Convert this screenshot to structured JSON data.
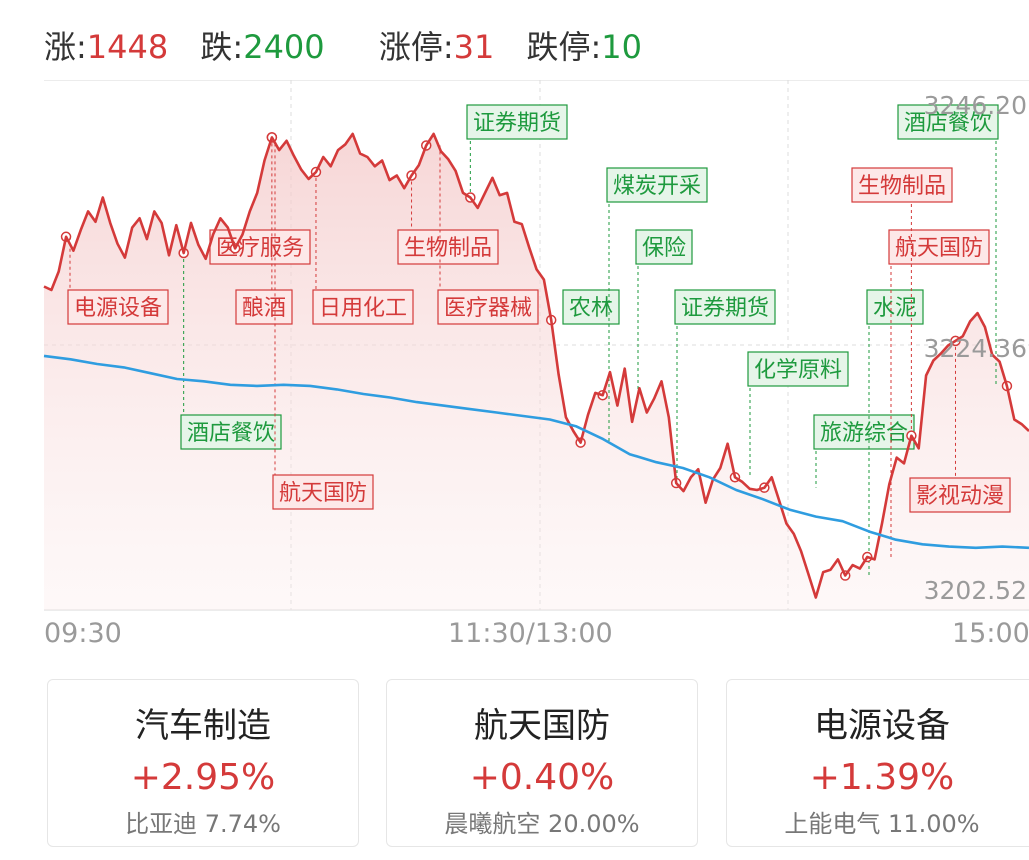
{
  "stats": {
    "up_label": "涨:",
    "up_value": "1448",
    "down_label": "跌:",
    "down_value": "2400",
    "limit_up_label": "涨停:",
    "limit_up_value": "31",
    "limit_down_label": "跌停:",
    "limit_down_value": "10"
  },
  "chart_data": {
    "type": "line",
    "y_axis_labels": [
      "3246.20",
      "3224.36",
      "3202.52"
    ],
    "ylim": [
      3202.52,
      3246.2
    ],
    "x_axis_labels": [
      "09:30",
      "11:30/13:00",
      "15:00"
    ],
    "series": [
      {
        "color": "#d43a3a",
        "values": [
          3230.5,
          3230.2,
          3231.8,
          3234.8,
          3233.6,
          3235.4,
          3237.0,
          3236.1,
          3238.2,
          3236.0,
          3234.2,
          3233.0,
          3235.6,
          3236.4,
          3234.6,
          3237.0,
          3236.0,
          3233.2,
          3235.8,
          3233.4,
          3236.0,
          3234.1,
          3232.9,
          3235.0,
          3236.4,
          3235.6,
          3233.8,
          3235.0,
          3237.0,
          3238.6,
          3241.4,
          3243.4,
          3242.3,
          3243.1,
          3241.8,
          3240.6,
          3239.8,
          3240.4,
          3241.7,
          3240.9,
          3242.3,
          3242.8,
          3243.7,
          3242.0,
          3241.7,
          3240.9,
          3241.4,
          3239.7,
          3240.1,
          3239.0,
          3240.1,
          3241.0,
          3242.7,
          3243.7,
          3242.2,
          3241.5,
          3240.5,
          3238.6,
          3238.2,
          3237.3,
          3238.6,
          3239.9,
          3238.4,
          3238.6,
          3236.1,
          3235.9,
          3233.9,
          3232.0,
          3231.1,
          3227.6,
          3222.9,
          3219.2,
          3218.0,
          3217.0,
          3219.4,
          3221.3,
          3221.1,
          3223.1,
          3220.2,
          3223.4,
          3218.8,
          3221.7,
          3219.6,
          3220.8,
          3222.3,
          3219.2,
          3213.5,
          3212.8,
          3214.0,
          3214.7,
          3211.8,
          3213.8,
          3214.8,
          3216.9,
          3214.0,
          3213.6,
          3213.0,
          3212.9,
          3213.1,
          3214.0,
          3212.0,
          3210.0,
          3209.1,
          3207.6,
          3205.6,
          3203.6,
          3205.8,
          3206.0,
          3206.9,
          3205.5,
          3206.4,
          3206.1,
          3207.1,
          3206.9,
          3210.0,
          3213.4,
          3215.7,
          3215.2,
          3217.6,
          3216.5,
          3222.8,
          3224.1,
          3224.7,
          3225.4,
          3225.8,
          3226.2,
          3227.5,
          3228.2,
          3227.0,
          3224.6,
          3224.0,
          3221.9,
          3219.0,
          3218.6,
          3218.0
        ]
      },
      {
        "color": "#2f9de0",
        "values": [
          3224.5,
          3224.2,
          3223.8,
          3223.5,
          3223.0,
          3222.5,
          3222.3,
          3222.0,
          3221.9,
          3222.0,
          3221.9,
          3221.6,
          3221.2,
          3220.9,
          3220.5,
          3220.2,
          3219.9,
          3219.6,
          3219.3,
          3219.0,
          3218.4,
          3217.3,
          3216.0,
          3215.3,
          3214.8,
          3214.0,
          3212.9,
          3212.1,
          3211.2,
          3210.6,
          3210.2,
          3209.3,
          3208.6,
          3208.2,
          3208.0,
          3207.9,
          3208.0,
          3207.9
        ]
      }
    ],
    "annotations": [
      {
        "label": "电源设备",
        "color": "red"
      },
      {
        "label": "酒店餐饮",
        "color": "green"
      },
      {
        "label": "医疗服务",
        "color": "red"
      },
      {
        "label": "酿酒",
        "color": "red"
      },
      {
        "label": "航天国防",
        "color": "red"
      },
      {
        "label": "日用化工",
        "color": "red"
      },
      {
        "label": "生物制品",
        "color": "red"
      },
      {
        "label": "医疗器械",
        "color": "red"
      },
      {
        "label": "证券期货",
        "color": "green"
      },
      {
        "label": "农林",
        "color": "green"
      },
      {
        "label": "煤炭开采",
        "color": "green"
      },
      {
        "label": "保险",
        "color": "green"
      },
      {
        "label": "证券期货",
        "color": "green"
      },
      {
        "label": "化学原料",
        "color": "green"
      },
      {
        "label": "旅游综合",
        "color": "green"
      },
      {
        "label": "水泥",
        "color": "green"
      },
      {
        "label": "航天国防",
        "color": "red"
      },
      {
        "label": "生物制品",
        "color": "red"
      },
      {
        "label": "酒店餐饮",
        "color": "green"
      },
      {
        "label": "影视动漫",
        "color": "red"
      }
    ]
  },
  "cards": [
    {
      "name": "汽车制造",
      "pct": "+2.95%",
      "lead": "比亚迪 7.74%"
    },
    {
      "name": "航天国防",
      "pct": "+0.40%",
      "lead": "晨曦航空 20.00%"
    },
    {
      "name": "电源设备",
      "pct": "+1.39%",
      "lead": "上能电气 11.00%"
    }
  ]
}
